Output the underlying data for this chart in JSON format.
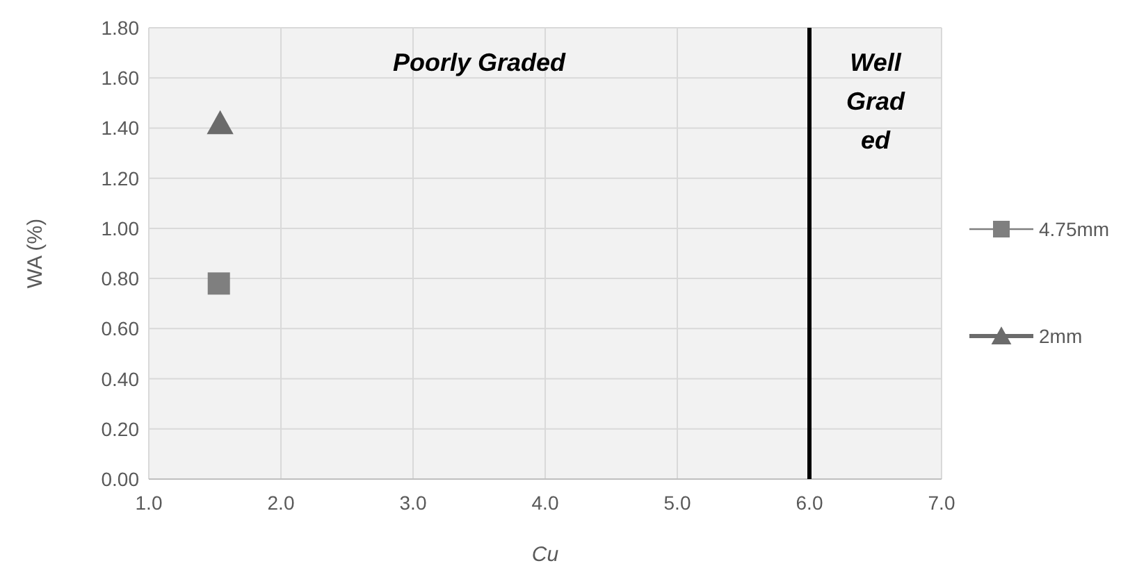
{
  "chart_data": {
    "type": "scatter",
    "xlabel": "Cu",
    "ylabel": "WA (%)",
    "xlim": [
      1,
      7
    ],
    "ylim": [
      0,
      1.8
    ],
    "xticks": [
      {
        "value": 1,
        "label": "1.0"
      },
      {
        "value": 2,
        "label": "2.0"
      },
      {
        "value": 3,
        "label": "3.0"
      },
      {
        "value": 4,
        "label": "4.0"
      },
      {
        "value": 5,
        "label": "5.0"
      },
      {
        "value": 6,
        "label": "6.0"
      },
      {
        "value": 7,
        "label": "7.0"
      }
    ],
    "yticks": [
      {
        "value": 0,
        "label": "0.00"
      },
      {
        "value": 0.2,
        "label": "0.20"
      },
      {
        "value": 0.4,
        "label": "0.40"
      },
      {
        "value": 0.6,
        "label": "0.60"
      },
      {
        "value": 0.8,
        "label": "0.80"
      },
      {
        "value": 1,
        "label": "1.00"
      },
      {
        "value": 1.2,
        "label": "1.20"
      },
      {
        "value": 1.4,
        "label": "1.40"
      },
      {
        "value": 1.6,
        "label": "1.60"
      },
      {
        "value": 1.8,
        "label": "1.80"
      }
    ],
    "grid": true,
    "legend": "right",
    "series": [
      {
        "name": "4.75mm",
        "color": "#7f7f7f",
        "marker": "square",
        "x": [
          1.53
        ],
        "values": [
          0.78
        ]
      },
      {
        "name": "2mm",
        "color": "#6b6b6b",
        "marker": "triangle",
        "x": [
          1.54
        ],
        "values": [
          1.42
        ]
      }
    ],
    "ref_lines": [
      {
        "axis": "x",
        "value": 6,
        "color": "#000000"
      }
    ],
    "annotations": [
      "Poorly Graded",
      "Well Grad ed"
    ]
  }
}
